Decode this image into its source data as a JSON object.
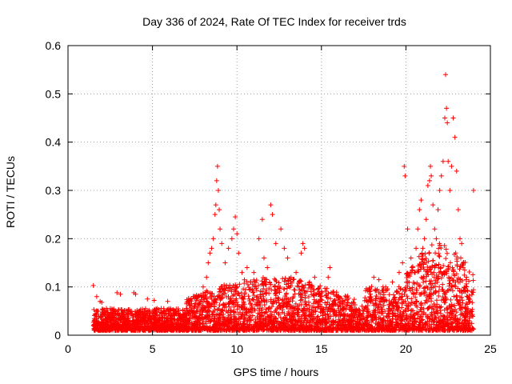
{
  "chart_data": {
    "type": "scatter",
    "title": "Day 336 of 2024, Rate Of TEC Index for receiver trds",
    "xlabel": "GPS time / hours",
    "ylabel": "ROTI / TECUs",
    "xlim": [
      0,
      25
    ],
    "ylim": [
      0,
      0.6
    ],
    "xticks": [
      "0",
      "5",
      "10",
      "15",
      "20",
      "25"
    ],
    "yticks": [
      "0",
      "0.1",
      "0.2",
      "0.3",
      "0.4",
      "0.5",
      "0.6"
    ],
    "grid": true,
    "marker": "plus",
    "series": [
      {
        "color": "#ff0000",
        "points": [
          [
            1.5,
            0.103
          ],
          [
            1.7,
            0.08
          ],
          [
            1.9,
            0.07
          ],
          [
            2.0,
            0.068
          ],
          [
            2.9,
            0.088
          ],
          [
            3.1,
            0.085
          ],
          [
            3.9,
            0.088
          ],
          [
            4.0,
            0.085
          ],
          [
            4.7,
            0.075
          ],
          [
            5.1,
            0.072
          ],
          [
            5.9,
            0.07
          ],
          [
            7.1,
            0.07
          ],
          [
            7.6,
            0.075
          ],
          [
            8.0,
            0.1
          ],
          [
            8.2,
            0.12
          ],
          [
            8.3,
            0.15
          ],
          [
            8.4,
            0.17
          ],
          [
            8.5,
            0.18
          ],
          [
            8.6,
            0.2
          ],
          [
            8.7,
            0.25
          ],
          [
            8.75,
            0.27
          ],
          [
            8.8,
            0.32
          ],
          [
            8.85,
            0.35
          ],
          [
            8.9,
            0.3
          ],
          [
            8.95,
            0.26
          ],
          [
            9.0,
            0.22
          ],
          [
            9.1,
            0.19
          ],
          [
            9.3,
            0.15
          ],
          [
            9.5,
            0.18
          ],
          [
            9.7,
            0.2
          ],
          [
            9.8,
            0.22
          ],
          [
            9.9,
            0.245
          ],
          [
            10.0,
            0.21
          ],
          [
            10.1,
            0.17
          ],
          [
            10.3,
            0.13
          ],
          [
            10.6,
            0.14
          ],
          [
            10.8,
            0.11
          ],
          [
            11.0,
            0.13
          ],
          [
            11.3,
            0.2
          ],
          [
            11.5,
            0.24
          ],
          [
            11.6,
            0.16
          ],
          [
            11.8,
            0.14
          ],
          [
            12.0,
            0.27
          ],
          [
            12.1,
            0.25
          ],
          [
            12.3,
            0.19
          ],
          [
            12.6,
            0.22
          ],
          [
            12.8,
            0.18
          ],
          [
            13.0,
            0.16
          ],
          [
            13.2,
            0.12
          ],
          [
            13.5,
            0.13
          ],
          [
            13.8,
            0.17
          ],
          [
            13.9,
            0.19
          ],
          [
            14.0,
            0.18
          ],
          [
            14.3,
            0.11
          ],
          [
            14.6,
            0.12
          ],
          [
            15.0,
            0.08
          ],
          [
            15.4,
            0.12
          ],
          [
            15.5,
            0.14
          ],
          [
            15.7,
            0.09
          ],
          [
            16.2,
            0.065
          ],
          [
            16.8,
            0.06
          ],
          [
            17.4,
            0.06
          ],
          [
            17.9,
            0.085
          ],
          [
            18.1,
            0.12
          ],
          [
            18.4,
            0.115
          ],
          [
            18.8,
            0.1
          ],
          [
            19.2,
            0.11
          ],
          [
            19.6,
            0.13
          ],
          [
            19.8,
            0.15
          ],
          [
            19.9,
            0.35
          ],
          [
            19.95,
            0.33
          ],
          [
            20.1,
            0.22
          ],
          [
            20.3,
            0.16
          ],
          [
            20.5,
            0.13
          ],
          [
            20.6,
            0.18
          ],
          [
            20.7,
            0.22
          ],
          [
            20.8,
            0.26
          ],
          [
            20.9,
            0.28
          ],
          [
            21.0,
            0.18
          ],
          [
            21.1,
            0.2
          ],
          [
            21.2,
            0.24
          ],
          [
            21.3,
            0.31
          ],
          [
            21.4,
            0.32
          ],
          [
            21.45,
            0.35
          ],
          [
            21.5,
            0.33
          ],
          [
            21.6,
            0.27
          ],
          [
            21.7,
            0.22
          ],
          [
            21.8,
            0.2
          ],
          [
            21.9,
            0.26
          ],
          [
            22.0,
            0.3
          ],
          [
            22.1,
            0.33
          ],
          [
            22.2,
            0.36
          ],
          [
            22.3,
            0.45
          ],
          [
            22.35,
            0.54
          ],
          [
            22.4,
            0.47
          ],
          [
            22.45,
            0.44
          ],
          [
            22.5,
            0.36
          ],
          [
            22.6,
            0.3
          ],
          [
            22.7,
            0.35
          ],
          [
            22.8,
            0.45
          ],
          [
            22.9,
            0.41
          ],
          [
            23.0,
            0.34
          ],
          [
            23.1,
            0.26
          ],
          [
            23.2,
            0.2
          ],
          [
            23.3,
            0.19
          ],
          [
            23.4,
            0.15
          ],
          [
            23.6,
            0.1
          ],
          [
            23.8,
            0.07
          ],
          [
            24.0,
            0.3
          ]
        ]
      }
    ]
  }
}
